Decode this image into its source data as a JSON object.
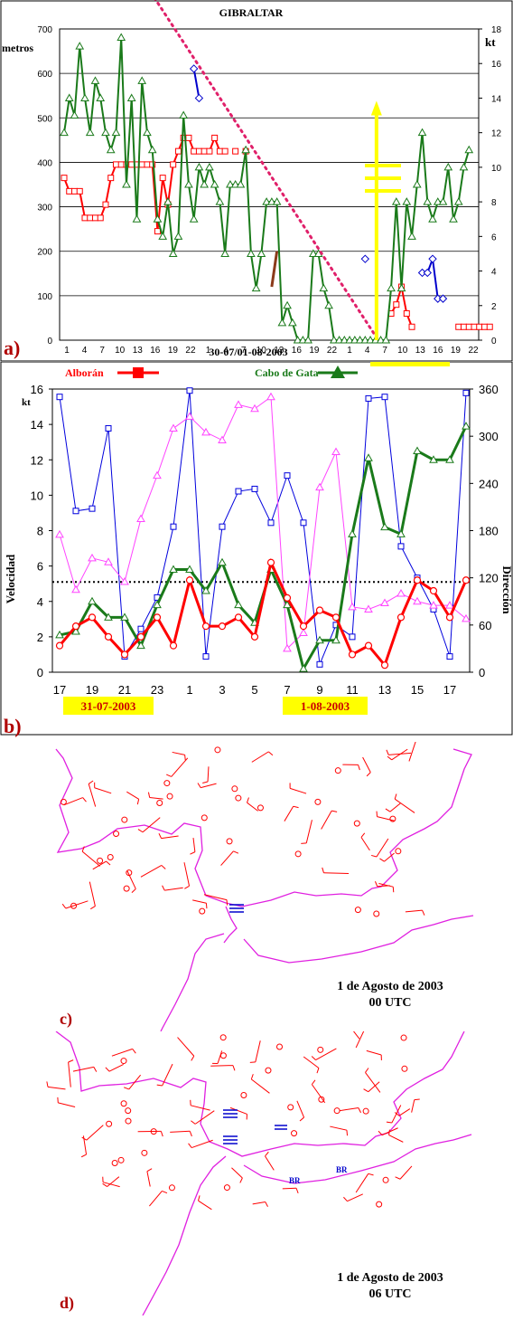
{
  "panel_a": {
    "letter": "a)",
    "chart_data": {
      "type": "line",
      "title": "GIBRALTAR",
      "ylabel_left": "metros",
      "ylabel_right": "kt",
      "xlabel": "30-07/01-08-2003",
      "ylim_left": [
        0,
        700
      ],
      "yticks_left": [
        "0",
        "100",
        "200",
        "300",
        "400",
        "500",
        "600",
        "700"
      ],
      "ylim_right": [
        0,
        18
      ],
      "yticks_right": [
        "0",
        "2",
        "4",
        "6",
        "8",
        "10",
        "12",
        "14",
        "16",
        "18"
      ],
      "x_ticks": [
        "1",
        "4",
        "7",
        "10",
        "13",
        "16",
        "19",
        "22",
        "1",
        "4",
        "7",
        "10",
        "13",
        "16",
        "19",
        "22",
        "1",
        "4",
        "7",
        "10",
        "13",
        "16",
        "19",
        "22"
      ],
      "grid": "horizontal",
      "series": [
        {
          "color": "#ff0000",
          "marker": "square",
          "axis": "left",
          "values": [
            365,
            335,
            335,
            335,
            275,
            275,
            275,
            275,
            305,
            365,
            395,
            395,
            395,
            395,
            395,
            395,
            395,
            395,
            245,
            365,
            305,
            395,
            425,
            455,
            455,
            425,
            425,
            425,
            425,
            455,
            425,
            425,
            null,
            425,
            null,
            425
          ]
        },
        {
          "color": "#ff0000",
          "marker": "square",
          "axis": "left",
          "start": 63,
          "values": [
            60,
            80,
            120,
            60,
            30
          ]
        },
        {
          "color": "#ff0000",
          "marker": "square",
          "axis": "left",
          "start": 76,
          "values": [
            30,
            30,
            30,
            30,
            30,
            30,
            30
          ]
        },
        {
          "color": "#1a7a1a",
          "marker": "triangle",
          "axis": "right",
          "values": [
            12,
            14,
            13,
            17,
            14,
            12,
            15,
            14,
            12,
            11,
            12,
            17.5,
            9,
            14,
            7,
            15,
            12,
            11,
            7,
            6,
            8,
            5,
            6,
            13,
            9,
            7,
            10,
            9,
            10,
            9,
            8,
            5,
            9,
            9,
            9,
            11,
            5,
            3,
            5,
            8,
            8,
            8,
            1,
            2,
            1,
            0,
            0,
            0,
            5,
            5,
            3,
            2,
            0,
            0,
            0,
            0,
            0,
            0,
            0,
            0,
            0,
            0,
            0,
            3,
            8,
            3,
            8,
            6,
            9,
            12,
            8,
            7,
            8,
            8,
            10,
            7,
            8,
            10,
            11
          ]
        },
        {
          "color": "#0000cc",
          "marker": "diamond",
          "axis": "right",
          "start": 25,
          "values": [
            15.7,
            14
          ]
        },
        {
          "color": "#0000cc",
          "marker": "diamond",
          "axis": "right",
          "start": 58,
          "values": [
            4.7
          ]
        },
        {
          "color": "#0000cc",
          "marker": "diamond",
          "axis": "right",
          "start": 69,
          "values": [
            3.9,
            3.9,
            4.7,
            2.4,
            2.4
          ]
        },
        {
          "color": "#8b3a1a",
          "marker": "none",
          "axis": "left",
          "start": 40,
          "values": [
            120,
            200
          ]
        }
      ],
      "annotations": {
        "dotted_line": {
          "color": "#e0206a",
          "from": [
            0,
            770
          ],
          "to": [
            40,
            0
          ]
        },
        "yellow_arrow": {
          "color": "#ffff00",
          "x": 48,
          "from": 0,
          "to": 530
        },
        "yellow_bars": {
          "color": "#ffff00",
          "count": 3
        }
      }
    }
  },
  "panel_b": {
    "letter": "b)",
    "chart_data": {
      "type": "line",
      "ylabel_left": "Velocidad",
      "ylabel_left_unit": "kt",
      "ylabel_right": "Dirección",
      "ylim_left": [
        0,
        16
      ],
      "yticks_left": [
        "0",
        "2",
        "4",
        "6",
        "8",
        "10",
        "12",
        "14",
        "16"
      ],
      "ylim_right": [
        0,
        360
      ],
      "yticks_right": [
        "0",
        "60",
        "120",
        "180",
        "240",
        "300",
        "360"
      ],
      "x_ticks": [
        "17",
        "19",
        "21",
        "23",
        "1",
        "3",
        "5",
        "7",
        "9",
        "11",
        "13",
        "15",
        "17"
      ],
      "threshold": 5.1,
      "legend": [
        {
          "name": "Alborán",
          "color": "#ff0000"
        },
        {
          "name": "Cabo de Gata",
          "color": "#1a7a1a"
        }
      ],
      "date_labels": [
        "31-07-2003",
        "1-08-2003"
      ],
      "series": [
        {
          "name": "Alborán",
          "color": "#ff0000",
          "marker": "circle",
          "axis": "left",
          "values": [
            1.5,
            2.6,
            3.1,
            2.0,
            1.0,
            2.0,
            3.1,
            1.5,
            5.2,
            2.6,
            2.6,
            3.1,
            2.0,
            6.2,
            4.2,
            2.6,
            3.5,
            3.1,
            1.0,
            1.5,
            0.4,
            3.1,
            5.2,
            4.6,
            3.1,
            5.2
          ]
        },
        {
          "name": "Cabo de Gata",
          "color": "#1a7a1a",
          "marker": "triangle",
          "axis": "left",
          "values": [
            2.1,
            2.3,
            4.0,
            3.1,
            3.1,
            1.5,
            3.8,
            5.8,
            5.8,
            4.6,
            6.2,
            3.8,
            2.8,
            5.8,
            3.8,
            0.2,
            1.8,
            1.8,
            7.8,
            12.1,
            8.2,
            7.8,
            12.5,
            12.0,
            12.0,
            13.9
          ]
        },
        {
          "name": "",
          "color": "#0000dd",
          "marker": "square",
          "axis": "right",
          "values": [
            350,
            205,
            208,
            310,
            20,
            55,
            95,
            185,
            358,
            20,
            185,
            230,
            233,
            190,
            250,
            190,
            10,
            60,
            45,
            348,
            350,
            160,
            120,
            80,
            20,
            355
          ]
        },
        {
          "name": "",
          "color": "#ff44ff",
          "marker": "triangle",
          "axis": "right",
          "values": [
            175,
            105,
            145,
            140,
            115,
            195,
            250,
            310,
            325,
            305,
            295,
            340,
            335,
            350,
            30,
            50,
            235,
            280,
            83,
            80,
            88,
            100,
            90,
            85,
            85,
            68
          ]
        }
      ]
    }
  },
  "panel_c": {
    "letter": "c)",
    "date": "1 de Agosto de 2003",
    "time": "00 UTC"
  },
  "panel_d": {
    "letter": "d)",
    "date": "1 de Agosto de 2003",
    "time": "06 UTC",
    "labels": [
      "BR",
      "BR"
    ]
  }
}
